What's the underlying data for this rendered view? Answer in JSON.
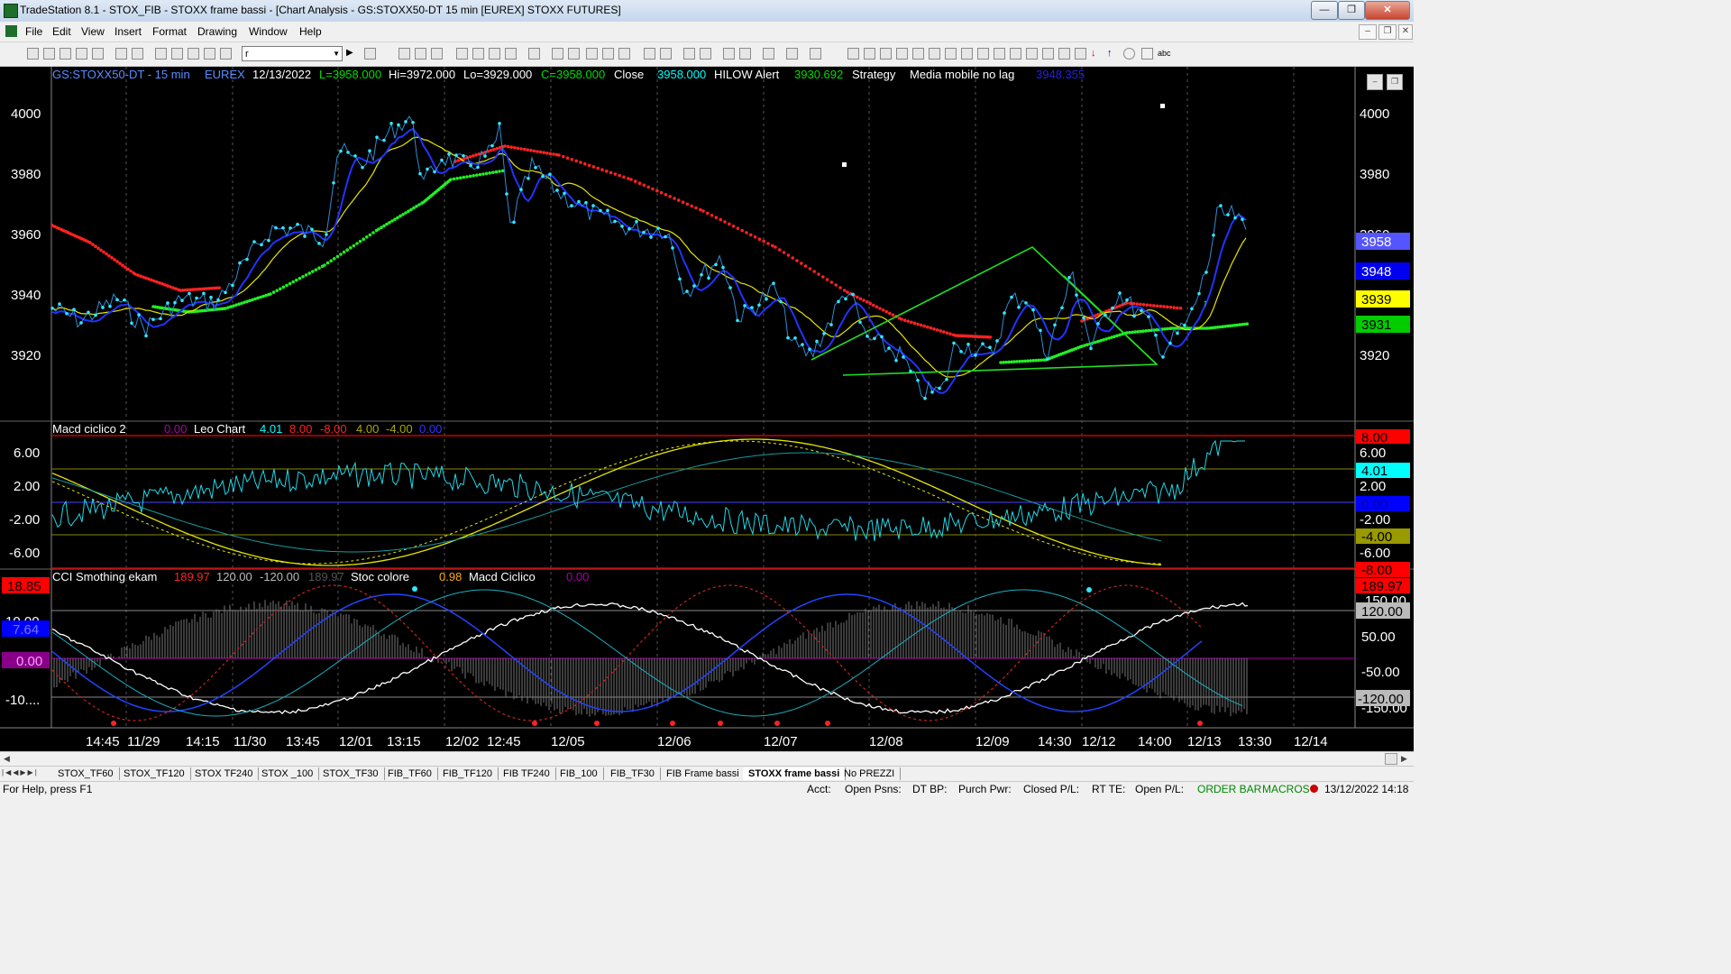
{
  "window": {
    "title": "TradeStation 8.1 - STOX_FIB - STOXX frame bassi - [Chart Analysis - GS:STOXX50-DT  15 min  [EUREX] STOXX FUTURES]"
  },
  "menu": [
    "File",
    "Edit",
    "View",
    "Insert",
    "Format",
    "Drawing",
    "Window",
    "Help"
  ],
  "toolbar": {
    "combo_value": "r"
  },
  "chart": {
    "header": {
      "symbol": "GS:STOXX50-DT - 15 min",
      "exchange": "EUREX",
      "date": "12/13/2022",
      "last": "L=3958.000",
      "high": "Hi=3972.000",
      "low": "Lo=3929.000",
      "close_eq": "C=3958.000",
      "close_label": "Close",
      "close_value": "3958.000",
      "hilow_label": "HILOW Alert",
      "hilow_value": "3930.692",
      "strategy_label": "Strategy",
      "media_label": "Media mobile no lag",
      "media_value": "3948.355"
    },
    "price_axis_left": [
      "4000",
      "3980",
      "3960",
      "3940",
      "3920"
    ],
    "price_axis_right": [
      "4000",
      "3980",
      "3960",
      "3940",
      "3920"
    ],
    "price_tags": [
      {
        "text": "3958",
        "bg": "#5555ff",
        "fg": "#ffffff"
      },
      {
        "text": "3948",
        "bg": "#0000ee",
        "fg": "#ffffff"
      },
      {
        "text": "3939",
        "bg": "#ffff00",
        "fg": "#000000"
      },
      {
        "text": "3931",
        "bg": "#00cc00",
        "fg": "#000000"
      }
    ],
    "macd": {
      "name": "Macd ciclico 2",
      "v1": "0.00",
      "leo": "Leo Chart",
      "v2": "4.01",
      "v3": "8.00",
      "v4": "-8.00",
      "v5": "4.00",
      "v6": "-4.00",
      "v7": "0.00",
      "axis_left": [
        "6.00",
        "2.00",
        "-2.00",
        "-6.00"
      ],
      "axis_right": [
        "8.00",
        "6.00",
        "4.01",
        "2.00",
        "0.00",
        "-2.00",
        "-4.00",
        "-6.00",
        "-8.00"
      ],
      "tags": [
        {
          "text": "8.00",
          "bg": "#ff0000",
          "fg": "#000000"
        },
        {
          "text": "4.01",
          "bg": "#00ffff",
          "fg": "#000000"
        },
        {
          "text": "0.00",
          "bg": "#0000ff",
          "fg": "#0000aa"
        },
        {
          "text": "-4.00",
          "bg": "#999900",
          "fg": "#000000"
        },
        {
          "text": "-8.00",
          "bg": "#ff0000",
          "fg": "#000000"
        }
      ]
    },
    "cci": {
      "name": "CCI Smothing ekam",
      "v1": "189.97",
      "v2": "120.00",
      "v3": "-120.00",
      "v4": "189.97",
      "stoc_label": "Stoc colore",
      "stoc_value": "0.98",
      "macd_label": "Macd Ciclico",
      "macd_value": "0.00",
      "axis_left": [
        "10.00",
        "-10...."
      ],
      "left_tags": [
        {
          "text": "18.85",
          "bg": "#ff0000",
          "fg": "#000000"
        },
        {
          "text": "7.64",
          "bg": "#0000ff",
          "fg": "#7777ff"
        },
        {
          "text": "0.00",
          "bg": "#880088",
          "fg": "#ff99ff"
        }
      ],
      "right_tags": [
        {
          "text": "189.97",
          "bg": "#ff0000",
          "fg": "#000000"
        },
        {
          "text": "120.00",
          "bg": "#bbbbbb",
          "fg": "#000000"
        },
        {
          "text": "-120.00",
          "bg": "#bbbbbb",
          "fg": "#000000"
        }
      ],
      "axis_right": [
        "150.00",
        "50.00",
        "-50.00",
        "-150.00"
      ]
    },
    "time_axis": [
      "14:45",
      "11/29",
      "14:15",
      "11/30",
      "13:45",
      "12/01",
      "13:15",
      "12/02",
      "12:45",
      "12/05",
      "12/06",
      "12/07",
      "12/08",
      "12/09",
      "14:30",
      "12/12",
      "14:00",
      "12/13",
      "13:30",
      "12/14"
    ]
  },
  "tabs": [
    "STOX_TF60",
    "STOX_TF120",
    "STOX TF240",
    "STOX _100",
    "STOX_TF30",
    "FIB_TF60",
    "FIB_TF120",
    "FIB TF240",
    "FIB_100",
    "FIB_TF30",
    "FIB Frame bassi",
    "STOXX frame bassi",
    "No PREZZI"
  ],
  "active_tab": "STOXX frame bassi",
  "status": {
    "help": "For Help, press F1",
    "acct": "Acct:",
    "open_psns": "Open Psns:",
    "dt_bp": "DT BP:",
    "purch_pwr": "Purch Pwr:",
    "closed_pl": "Closed P/L:",
    "rt_te": "RT TE:",
    "open_pl": "Open P/L:",
    "order_bar": "ORDER BAR",
    "macros": "MACROS",
    "datetime": "13/12/2022 14:18"
  }
}
